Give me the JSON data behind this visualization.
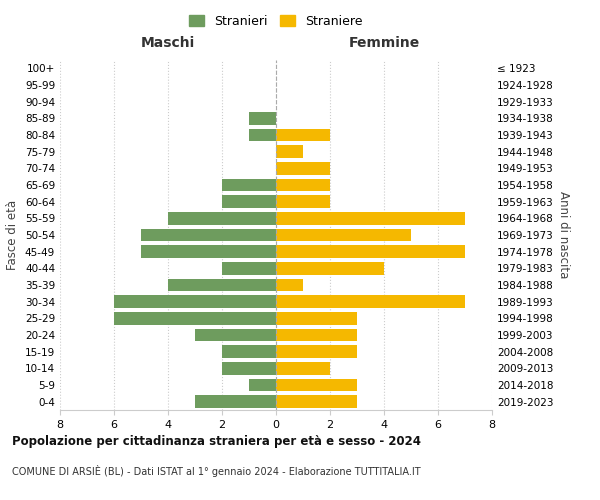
{
  "age_groups": [
    "0-4",
    "5-9",
    "10-14",
    "15-19",
    "20-24",
    "25-29",
    "30-34",
    "35-39",
    "40-44",
    "45-49",
    "50-54",
    "55-59",
    "60-64",
    "65-69",
    "70-74",
    "75-79",
    "80-84",
    "85-89",
    "90-94",
    "95-99",
    "100+"
  ],
  "birth_years": [
    "2019-2023",
    "2014-2018",
    "2009-2013",
    "2004-2008",
    "1999-2003",
    "1994-1998",
    "1989-1993",
    "1984-1988",
    "1979-1983",
    "1974-1978",
    "1969-1973",
    "1964-1968",
    "1959-1963",
    "1954-1958",
    "1949-1953",
    "1944-1948",
    "1939-1943",
    "1934-1938",
    "1929-1933",
    "1924-1928",
    "≤ 1923"
  ],
  "males": [
    3,
    1,
    2,
    2,
    3,
    6,
    6,
    4,
    2,
    5,
    5,
    4,
    2,
    2,
    0,
    0,
    1,
    1,
    0,
    0,
    0
  ],
  "females": [
    3,
    3,
    2,
    3,
    3,
    3,
    7,
    1,
    4,
    7,
    5,
    7,
    2,
    2,
    2,
    1,
    2,
    0,
    0,
    0,
    0
  ],
  "male_color": "#6e9c5e",
  "female_color": "#f5b800",
  "background_color": "#ffffff",
  "grid_color": "#cccccc",
  "title": "Popolazione per cittadinanza straniera per età e sesso - 2024",
  "subtitle": "COMUNE DI ARSIÈ (BL) - Dati ISTAT al 1° gennaio 2024 - Elaborazione TUTTITALIA.IT",
  "xlabel_left": "Maschi",
  "xlabel_right": "Femmine",
  "ylabel_left": "Fasce di età",
  "ylabel_right": "Anni di nascita",
  "legend_male": "Stranieri",
  "legend_female": "Straniere",
  "xlim": 8,
  "figsize": [
    6.0,
    5.0
  ],
  "dpi": 100
}
